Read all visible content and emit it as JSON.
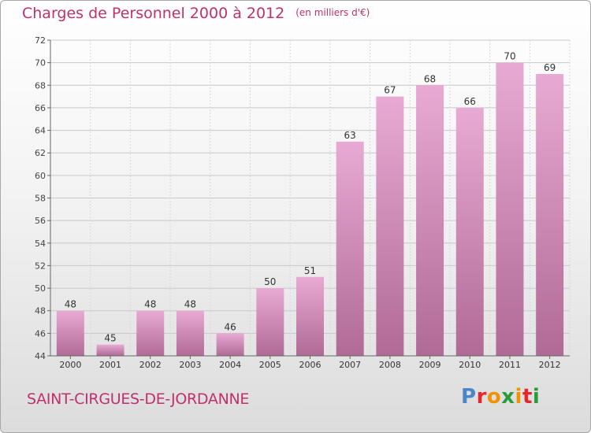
{
  "title": "Charges de Personnel 2000 à 2012",
  "unit": "(en milliers d'€)",
  "commune": "SAINT-CIRGUES-DE-JORDANNE",
  "logo": {
    "text": "Proxiti",
    "letter_colors": [
      "#4a86c8",
      "#e5262d",
      "#f29200",
      "#2a9a3a",
      "#f29200",
      "#e5262d",
      "#2a9a3a"
    ]
  },
  "colors": {
    "title": "#c0306f",
    "bar_top": "#e8aad4",
    "bar_bottom": "#b06a96",
    "grid": "#c8c8c8"
  },
  "chart_data": {
    "type": "bar",
    "title": "Charges de Personnel 2000 à 2012",
    "categories": [
      "2000",
      "2001",
      "2002",
      "2003",
      "2004",
      "2005",
      "2006",
      "2007",
      "2008",
      "2009",
      "2010",
      "2011",
      "2012"
    ],
    "values": [
      48,
      45,
      48,
      48,
      46,
      50,
      51,
      63,
      67,
      68,
      66,
      70,
      69
    ],
    "ylim": [
      44,
      72
    ],
    "yticks": [
      44,
      46,
      48,
      50,
      52,
      54,
      56,
      58,
      60,
      62,
      64,
      66,
      68,
      70,
      72
    ],
    "grid": true,
    "data_labels": true
  }
}
